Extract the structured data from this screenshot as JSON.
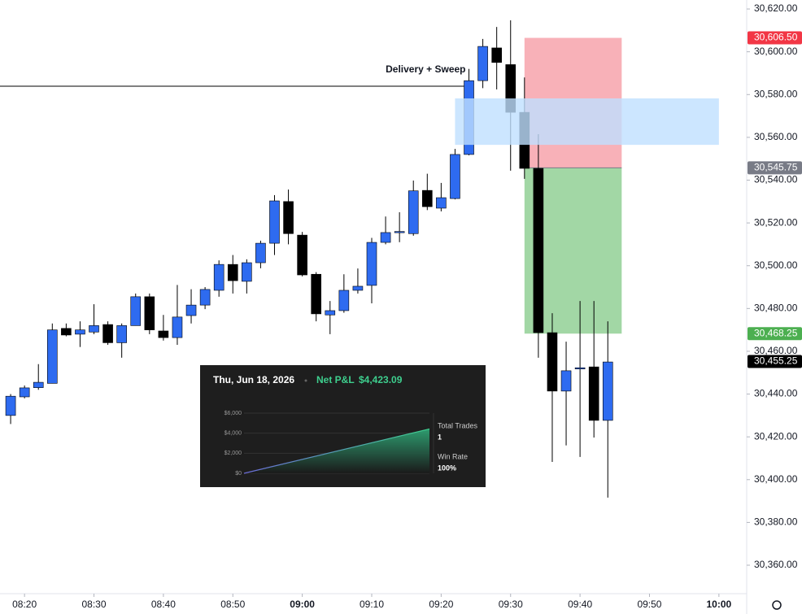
{
  "chart_data": [
    {
      "type": "candlestick",
      "x": [
        "08:18",
        "08:20",
        "08:22",
        "08:24",
        "08:26",
        "08:28",
        "08:30",
        "08:32",
        "08:34",
        "08:36",
        "08:38",
        "08:40",
        "08:42",
        "08:44",
        "08:46",
        "08:48",
        "08:50",
        "08:52",
        "08:54",
        "08:56",
        "08:58",
        "09:00",
        "09:02",
        "09:04",
        "09:06",
        "09:08",
        "09:10",
        "09:12",
        "09:14",
        "09:16",
        "09:18",
        "09:20",
        "09:22",
        "09:24",
        "09:26",
        "09:28",
        "09:30",
        "09:32",
        "09:34",
        "09:36",
        "09:38",
        "09:40",
        "09:42",
        "09:44"
      ],
      "open": [
        30430,
        30438.7,
        30443,
        30445,
        30470.7,
        30468,
        30469,
        30472.5,
        30464,
        30472,
        30485.5,
        30469.5,
        30466.4,
        30476.7,
        30481.6,
        30488.5,
        30500.6,
        30492.7,
        30501.4,
        30510.5,
        30530,
        30514.3,
        30496,
        30477,
        30479,
        30488.5,
        30490.8,
        30510.9,
        30515.6,
        30515,
        30535.2,
        30526.9,
        30531.4,
        30552,
        30586.5,
        30601.8,
        30594,
        30571.7,
        30545.5,
        30468.7,
        30441.4,
        30451.9,
        30452.7,
        30427.7
      ],
      "high": [
        30440,
        30444,
        30454,
        30473,
        30473,
        30474,
        30482,
        30474,
        30473,
        30487,
        30487,
        30477,
        30491,
        30489,
        30490,
        30502.5,
        30505,
        30503,
        30511.7,
        30533,
        30535.6,
        30515.8,
        30497,
        30483.5,
        30496,
        30498.7,
        30513,
        30523,
        30525,
        30539.8,
        30543,
        30538.7,
        30554.6,
        30592,
        30606,
        30611.6,
        30614.7,
        30588,
        30561.5,
        30477.8,
        30464.5,
        30483.5,
        30483.5,
        30474
      ],
      "low": [
        30426,
        30438,
        30442,
        30445,
        30467,
        30462,
        30468,
        30463,
        30457,
        30472,
        30468,
        30465,
        30463,
        30473,
        30479.7,
        30485.5,
        30487,
        30487,
        30498.8,
        30505,
        30510,
        30495,
        30474,
        30468,
        30478,
        30487,
        30482.4,
        30510,
        30511,
        30514,
        30526,
        30525.4,
        30531,
        30551.6,
        30583,
        30582.4,
        30544.4,
        30540.6,
        30457,
        30408.3,
        30416,
        30410.6,
        30419.7,
        30391.6
      ],
      "close": [
        30439,
        30442.9,
        30445.5,
        30470,
        30467.6,
        30470,
        30472,
        30464,
        30472,
        30485.5,
        30470,
        30466.4,
        30476,
        30481.6,
        30488.9,
        30500.6,
        30493,
        30501.4,
        30510.5,
        30530.3,
        30515,
        30495.7,
        30477.5,
        30479,
        30488.5,
        30490.4,
        30510.9,
        30515.5,
        30516,
        30535,
        30527.6,
        30531.8,
        30552,
        30586.5,
        30602.5,
        30595,
        30571.7,
        30545.5,
        30468.7,
        30441.4,
        30450.9,
        30452.3,
        30427.7,
        30455
      ],
      "up_color": "#2e6bf0",
      "down_color": "#000000",
      "wick_color": "#000000",
      "xlim": [
        "08:16",
        "10:04"
      ],
      "xticks": [
        "08:20",
        "08:30",
        "08:40",
        "08:50",
        "09:00",
        "09:10",
        "09:20",
        "09:30",
        "09:40",
        "09:50",
        "10:00"
      ],
      "ylim": [
        30346.7,
        30624.2
      ],
      "yticks": [
        {
          "value": 30360,
          "label": "30,360.00"
        },
        {
          "value": 30380,
          "label": "30,380.00"
        },
        {
          "value": 30400,
          "label": "30,400.00"
        },
        {
          "value": 30420,
          "label": "30,420.00"
        },
        {
          "value": 30440,
          "label": "30,440.00"
        },
        {
          "value": 30460,
          "label": "30,460.00"
        },
        {
          "value": 30480,
          "label": "30,480.00"
        },
        {
          "value": 30500,
          "label": "30,500.00"
        },
        {
          "value": 30520,
          "label": "30,520.00"
        },
        {
          "value": 30540,
          "label": "30,540.00"
        },
        {
          "value": 30560,
          "label": "30,560.00"
        },
        {
          "value": 30580,
          "label": "30,580.00"
        },
        {
          "value": 30600,
          "label": "30,600.00"
        },
        {
          "value": 30620,
          "label": "30,620.00"
        }
      ],
      "price_labels": [
        {
          "value": 30606.5,
          "label": "30,606.50",
          "color": "#f23645"
        },
        {
          "value": 30545.75,
          "label": "30,545.75",
          "color": "#787b86"
        },
        {
          "value": 30468.25,
          "label": "30,468.25",
          "color": "#4caf50"
        },
        {
          "value": 30455.25,
          "label": "30,455.25",
          "color": "#000000"
        }
      ],
      "position": {
        "start": "09:32",
        "end": "09:46",
        "entry": 30545.75,
        "stop": 30606.5,
        "target": 30468.25,
        "stop_color": "#f7a8b0",
        "target_color": "#9dd5a0"
      },
      "zone": {
        "start": "09:22",
        "end": "10:00",
        "top": 30578.2,
        "bottom": 30556.5,
        "color": "#bfe0ff"
      },
      "level": {
        "label": "Delivery + Sweep",
        "value": 30583.9,
        "end": "09:24"
      }
    },
    {
      "type": "area",
      "title": "Thu, Jun 18, 2026",
      "metric": "Net P&L",
      "metric_value": 4423.09,
      "metric_value_label": "$4,423.09",
      "values": [
        0,
        4423.09
      ],
      "ylim": [
        0,
        6000
      ],
      "yticks": [
        {
          "value": 0,
          "label": "$0"
        },
        {
          "value": 2000,
          "label": "$2,000"
        },
        {
          "value": 4000,
          "label": "$4,000"
        },
        {
          "value": 6000,
          "label": "$6,000"
        }
      ],
      "stats": [
        {
          "label": "Total Trades",
          "value": 1
        },
        {
          "label": "Win Rate",
          "value": 100,
          "value_label": "100%"
        }
      ]
    }
  ]
}
